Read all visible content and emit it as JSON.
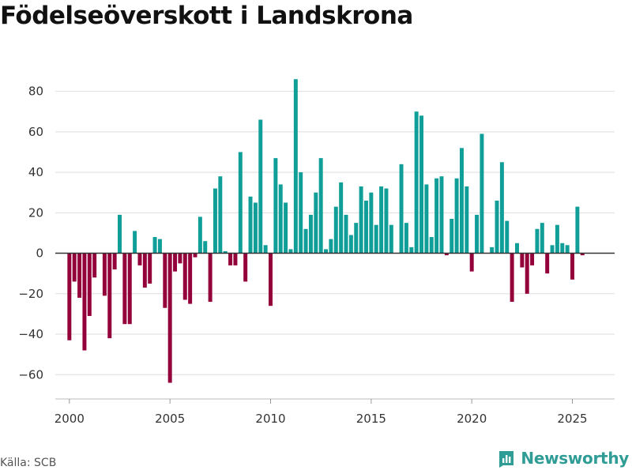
{
  "page": {
    "title": "Födelseöverskott i Landskrona",
    "source": "Källa: SCB",
    "brand": "Newsworthy"
  },
  "colors": {
    "positive": "#0f9e98",
    "negative": "#93003a",
    "grid": "#dddddd",
    "zero_line": "#333333",
    "brand": "#2f9d95"
  },
  "chart_data": {
    "type": "bar",
    "title": "Födelseöverskott i Landskrona",
    "xlabel": "",
    "ylabel": "",
    "x_unit": "quarter",
    "x_start": "2000 Q1",
    "x_end": "2025 Q3",
    "xlim": [
      1999.3,
      2027.1
    ],
    "ylim": [
      -72,
      90
    ],
    "y_ticks": [
      80,
      60,
      40,
      20,
      0,
      -20,
      -40,
      -60
    ],
    "y_tick_labels": [
      "80",
      "60",
      "40",
      "20",
      "0",
      "−20",
      "−40",
      "−60"
    ],
    "x_ticks": [
      2000,
      2005,
      2010,
      2015,
      2020,
      2025
    ],
    "x_tick_labels": [
      "2000",
      "2005",
      "2010",
      "2015",
      "2020",
      "2025"
    ],
    "grid": true,
    "series": [
      {
        "name": "Födelseöverskott",
        "values": [
          -43,
          -14,
          -22,
          -48,
          -31,
          -12,
          0,
          -21,
          -42,
          -8,
          19,
          -35,
          -35,
          11,
          -6,
          -17,
          -15,
          8,
          7,
          -27,
          -64,
          -9,
          -5,
          -23,
          -25,
          -2,
          18,
          6,
          -24,
          32,
          38,
          1,
          -6,
          -6,
          50,
          -14,
          28,
          25,
          66,
          4,
          -26,
          47,
          34,
          25,
          2,
          86,
          40,
          12,
          19,
          30,
          47,
          2,
          7,
          23,
          35,
          19,
          9,
          15,
          33,
          26,
          30,
          14,
          33,
          32,
          14,
          0,
          44,
          15,
          3,
          70,
          68,
          34,
          8,
          37,
          38,
          -1,
          17,
          37,
          52,
          33,
          -9,
          19,
          59,
          0,
          3,
          26,
          45,
          16,
          -24,
          5,
          -7,
          -20,
          -6,
          12,
          15,
          -10,
          4,
          14,
          5,
          4,
          -13,
          23,
          -1
        ]
      }
    ]
  }
}
